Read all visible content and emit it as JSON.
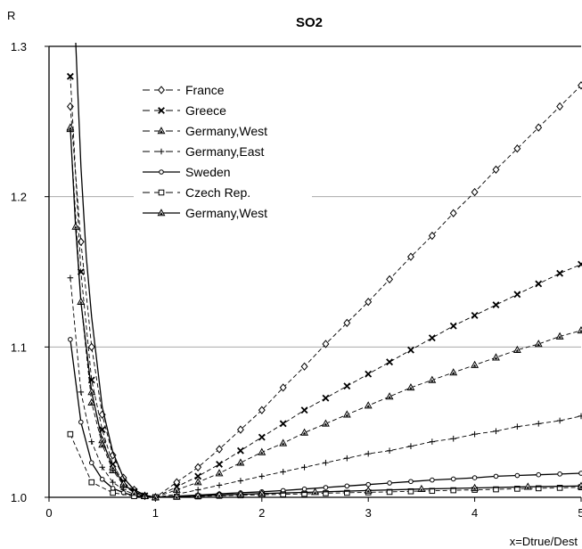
{
  "chart_data": {
    "type": "line",
    "title": "SO2",
    "ylabel": "R",
    "xlabel": "x=Dtrue/Dest",
    "xlim": [
      0,
      5
    ],
    "ylim": [
      1.0,
      1.3
    ],
    "x_ticks": [
      "0",
      "1",
      "2",
      "3",
      "4",
      "5"
    ],
    "y_ticks": [
      "1.0",
      "1.1",
      "1.2",
      "1.3"
    ],
    "grid": "horizontal",
    "legend_position": "top-left",
    "series": [
      {
        "name": "France",
        "marker": "diamond",
        "dash": true,
        "x": [
          0.2,
          0.3,
          0.4,
          0.5,
          0.6,
          0.7,
          0.8,
          0.9,
          1.0,
          1.2,
          1.4,
          1.6,
          1.8,
          2.0,
          2.2,
          2.4,
          2.6,
          2.8,
          3.0,
          3.2,
          3.4,
          3.6,
          3.8,
          4.0,
          4.2,
          4.4,
          4.6,
          4.8,
          5.0
        ],
        "y": [
          1.26,
          1.17,
          1.1,
          1.055,
          1.028,
          1.013,
          1.005,
          1.001,
          1.0,
          1.01,
          1.02,
          1.032,
          1.045,
          1.058,
          1.073,
          1.087,
          1.102,
          1.116,
          1.13,
          1.145,
          1.16,
          1.174,
          1.189,
          1.203,
          1.218,
          1.232,
          1.246,
          1.26,
          1.274
        ]
      },
      {
        "name": "Greece",
        "marker": "x",
        "dash": true,
        "x": [
          0.2,
          0.3,
          0.4,
          0.5,
          0.6,
          0.7,
          0.8,
          0.9,
          1.0,
          1.2,
          1.4,
          1.6,
          1.8,
          2.0,
          2.2,
          2.4,
          2.6,
          2.8,
          3.0,
          3.2,
          3.4,
          3.6,
          3.8,
          4.0,
          4.2,
          4.4,
          4.6,
          4.8,
          5.0
        ],
        "y": [
          1.28,
          1.15,
          1.078,
          1.045,
          1.022,
          1.01,
          1.004,
          1.001,
          1.0,
          1.007,
          1.014,
          1.022,
          1.031,
          1.04,
          1.049,
          1.058,
          1.066,
          1.074,
          1.082,
          1.09,
          1.098,
          1.106,
          1.114,
          1.121,
          1.128,
          1.135,
          1.142,
          1.149,
          1.155
        ]
      },
      {
        "name": "Germany,West",
        "marker": "triangle",
        "dash": true,
        "x": [
          0.2,
          0.3,
          0.4,
          0.5,
          0.6,
          0.7,
          0.8,
          0.9,
          1.0,
          1.2,
          1.4,
          1.6,
          1.8,
          2.0,
          2.2,
          2.4,
          2.6,
          2.8,
          3.0,
          3.2,
          3.4,
          3.6,
          3.8,
          4.0,
          4.2,
          4.4,
          4.6,
          4.8,
          5.0
        ],
        "y": [
          1.245,
          1.13,
          1.063,
          1.035,
          1.018,
          1.008,
          1.003,
          1.001,
          1.0,
          1.005,
          1.01,
          1.016,
          1.023,
          1.03,
          1.036,
          1.043,
          1.049,
          1.055,
          1.061,
          1.067,
          1.073,
          1.078,
          1.083,
          1.088,
          1.093,
          1.098,
          1.102,
          1.107,
          1.111
        ]
      },
      {
        "name": "Germany,East",
        "marker": "plus",
        "dash": true,
        "x": [
          0.2,
          0.3,
          0.4,
          0.5,
          0.6,
          0.7,
          0.8,
          0.9,
          1.0,
          1.2,
          1.4,
          1.6,
          1.8,
          2.0,
          2.2,
          2.4,
          2.6,
          2.8,
          3.0,
          3.2,
          3.4,
          3.6,
          3.8,
          4.0,
          4.2,
          4.4,
          4.6,
          4.8,
          5.0
        ],
        "y": [
          1.146,
          1.07,
          1.037,
          1.02,
          1.01,
          1.005,
          1.002,
          1.0005,
          1.0,
          1.002,
          1.005,
          1.008,
          1.011,
          1.014,
          1.017,
          1.02,
          1.023,
          1.026,
          1.029,
          1.031,
          1.034,
          1.037,
          1.039,
          1.042,
          1.044,
          1.047,
          1.049,
          1.051,
          1.054
        ]
      },
      {
        "name": "Sweden",
        "marker": "circle",
        "dash": false,
        "x": [
          0.2,
          0.3,
          0.4,
          0.5,
          0.6,
          0.7,
          0.8,
          0.9,
          1.0,
          1.2,
          1.4,
          1.6,
          1.8,
          2.0,
          2.2,
          2.4,
          2.6,
          2.8,
          3.0,
          3.2,
          3.4,
          3.6,
          3.8,
          4.0,
          4.2,
          4.4,
          4.6,
          4.8,
          5.0
        ],
        "y": [
          1.105,
          1.05,
          1.023,
          1.012,
          1.006,
          1.003,
          1.001,
          1.0003,
          1.0,
          1.0008,
          1.0015,
          1.0023,
          1.003,
          1.0037,
          1.0045,
          1.0055,
          1.0065,
          1.0075,
          1.0085,
          1.0095,
          1.0105,
          1.0115,
          1.0122,
          1.013,
          1.014,
          1.0145,
          1.015,
          1.0155,
          1.016
        ]
      },
      {
        "name": "Czech Rep.",
        "marker": "square",
        "dash": true,
        "x": [
          0.2,
          0.4,
          0.6,
          0.8,
          1.0,
          1.2,
          1.4,
          1.6,
          1.8,
          2.0,
          2.2,
          2.4,
          2.6,
          2.8,
          3.0,
          3.2,
          3.4,
          3.6,
          3.8,
          4.0,
          4.2,
          4.4,
          4.6,
          4.8,
          5.0
        ],
        "y": [
          1.042,
          1.01,
          1.003,
          1.0008,
          1.0,
          1.0003,
          1.0006,
          1.001,
          1.0013,
          1.0017,
          1.002,
          1.0023,
          1.0027,
          1.003,
          1.0033,
          1.0036,
          1.004,
          1.0043,
          1.0047,
          1.005,
          1.0053,
          1.0057,
          1.006,
          1.0063,
          1.0067
        ]
      },
      {
        "name": "Germany,West",
        "marker": "triangle",
        "dash": false,
        "x": [
          0.2,
          0.25,
          0.3,
          0.4,
          0.5,
          0.6,
          0.7,
          0.8,
          0.9,
          1.0,
          1.2,
          1.4,
          1.6,
          1.8,
          2.0,
          2.5,
          3.0,
          3.5,
          4.0,
          4.5,
          5.0
        ],
        "y": [
          1.246,
          1.18,
          1.13,
          1.07,
          1.038,
          1.02,
          1.009,
          1.003,
          1.0008,
          1.0,
          1.0005,
          1.001,
          1.0015,
          1.002,
          1.0025,
          1.0035,
          1.0045,
          1.0055,
          1.0062,
          1.007,
          1.0075
        ]
      },
      {
        "name": "",
        "marker": "none",
        "dash": false,
        "x": [
          0.25,
          0.3,
          0.35,
          0.4,
          0.5,
          0.6,
          0.7,
          0.8,
          0.9,
          1.0
        ],
        "y": [
          1.305,
          1.22,
          1.16,
          1.12,
          1.06,
          1.03,
          1.013,
          1.005,
          1.0015,
          1.0
        ]
      }
    ]
  }
}
